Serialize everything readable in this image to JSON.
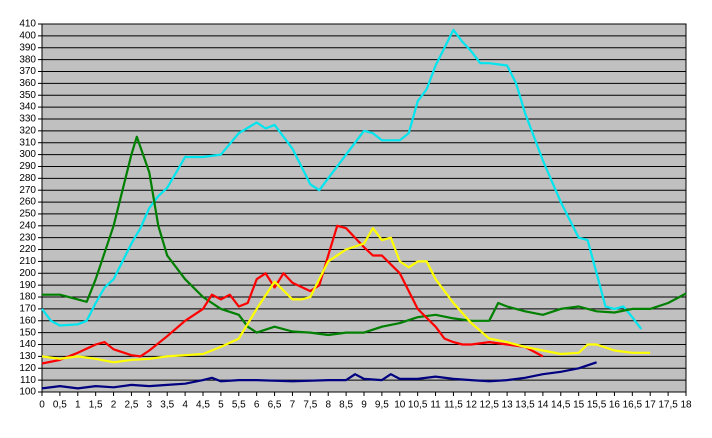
{
  "chart_data": {
    "type": "line",
    "xlim": [
      0,
      18
    ],
    "xticks": [
      0,
      {
        "value": 0.5,
        "label": "0,5"
      },
      1,
      {
        "value": 1.5,
        "label": "1,5"
      },
      2,
      {
        "value": 2.5,
        "label": "2,5"
      },
      3,
      {
        "value": 3.5,
        "label": "3,5"
      },
      4,
      {
        "value": 4.5,
        "label": "4,5"
      },
      5,
      {
        "value": 5.5,
        "label": "5,5"
      },
      6,
      {
        "value": 6.5,
        "label": "6,5"
      },
      7,
      {
        "value": 7.5,
        "label": "7,5"
      },
      8,
      {
        "value": 8.5,
        "label": "8,5"
      },
      9,
      {
        "value": 9.5,
        "label": "9,5"
      },
      10,
      {
        "value": 10.5,
        "label": "10,5"
      },
      11,
      {
        "value": 11.5,
        "label": "11,5"
      },
      12,
      {
        "value": 12.5,
        "label": "12,5"
      },
      13,
      {
        "value": 13.5,
        "label": "13,5"
      },
      14,
      {
        "value": 14.5,
        "label": "14,5"
      },
      15,
      {
        "value": 15.5,
        "label": "15,5"
      },
      16,
      {
        "value": 16.5,
        "label": "16,5"
      },
      17,
      {
        "value": 17.5,
        "label": "17,5"
      },
      18
    ],
    "ylim": [
      100,
      410
    ],
    "yticks": [
      100,
      110,
      120,
      130,
      140,
      150,
      160,
      170,
      180,
      190,
      200,
      210,
      220,
      230,
      240,
      250,
      260,
      270,
      280,
      290,
      300,
      310,
      320,
      330,
      340,
      350,
      360,
      370,
      380,
      390,
      400,
      410
    ],
    "grid": true,
    "series": [
      {
        "color": "#00e5ee",
        "x": [
          0,
          0.25,
          0.5,
          1,
          1.25,
          1.5,
          1.75,
          2,
          2.25,
          2.5,
          2.75,
          3,
          3.25,
          3.5,
          3.75,
          4,
          4.5,
          5,
          5.5,
          6,
          6.25,
          6.5,
          7,
          7.5,
          7.75,
          8,
          8.5,
          9,
          9.25,
          9.5,
          10,
          10.25,
          10.5,
          10.75,
          11,
          11.25,
          11.5,
          11.75,
          12,
          12.25,
          12.5,
          13,
          13.25,
          13.5,
          14,
          14.5,
          15,
          15.25,
          15.5,
          15.75,
          16,
          16.25,
          16.5,
          16.75
        ],
        "values": [
          170,
          160,
          156,
          157,
          160,
          175,
          188,
          195,
          210,
          225,
          238,
          255,
          265,
          272,
          285,
          298,
          298,
          300,
          318,
          327,
          322,
          325,
          305,
          275,
          270,
          280,
          300,
          320,
          318,
          312,
          312,
          318,
          345,
          355,
          375,
          390,
          405,
          395,
          387,
          377,
          377,
          375,
          360,
          335,
          295,
          260,
          230,
          228,
          200,
          172,
          170,
          172,
          163,
          153
        ]
      },
      {
        "color": "#008000",
        "x": [
          0,
          0.5,
          1,
          1.25,
          1.5,
          2,
          2.5,
          2.65,
          3,
          3.25,
          3.5,
          4,
          4.5,
          5,
          5.5,
          5.75,
          6,
          6.5,
          7,
          7.5,
          8,
          8.5,
          9,
          9.5,
          10,
          10.5,
          11,
          11.5,
          12,
          12.5,
          12.75,
          13,
          13.5,
          14,
          14.5,
          15,
          15.5,
          16,
          16.5,
          17,
          17.5,
          18
        ],
        "values": [
          182,
          182,
          178,
          176,
          195,
          240,
          300,
          315,
          285,
          240,
          215,
          195,
          180,
          170,
          165,
          155,
          150,
          155,
          151,
          150,
          148,
          150,
          150,
          155,
          158,
          163,
          165,
          162,
          160,
          160,
          175,
          172,
          168,
          165,
          170,
          172,
          168,
          167,
          170,
          170,
          175,
          183
        ]
      },
      {
        "color": "#ff0000",
        "x": [
          0,
          0.5,
          1,
          1.5,
          1.75,
          2,
          2.5,
          2.75,
          3,
          3.5,
          4,
          4.5,
          4.75,
          5,
          5.25,
          5.5,
          5.75,
          6,
          6.25,
          6.5,
          6.75,
          7,
          7.5,
          7.75,
          8,
          8.25,
          8.5,
          9,
          9.25,
          9.5,
          10,
          10.5,
          11,
          11.25,
          11.5,
          11.75,
          12,
          12.5,
          13,
          13.5,
          14
        ],
        "values": [
          124,
          127,
          133,
          140,
          142,
          136,
          131,
          130,
          135,
          147,
          160,
          170,
          182,
          178,
          182,
          172,
          175,
          195,
          200,
          188,
          200,
          192,
          185,
          190,
          215,
          240,
          238,
          222,
          215,
          215,
          200,
          170,
          155,
          145,
          142,
          140,
          140,
          142,
          140,
          138,
          130
        ]
      },
      {
        "color": "#ffff00",
        "x": [
          0,
          0.5,
          1,
          1.5,
          2,
          2.5,
          3,
          3.5,
          4,
          4.5,
          5,
          5.5,
          6,
          6.5,
          7,
          7.25,
          7.5,
          8,
          8.5,
          9,
          9.25,
          9.5,
          9.75,
          10,
          10.25,
          10.5,
          10.75,
          11,
          11.5,
          12,
          12.5,
          13,
          13.5,
          14,
          14.5,
          15,
          15.25,
          15.5,
          16,
          16.5,
          17
        ],
        "values": [
          130,
          128,
          130,
          128,
          125,
          127,
          128,
          130,
          131,
          132,
          138,
          145,
          170,
          193,
          178,
          178,
          180,
          210,
          220,
          225,
          238,
          228,
          230,
          210,
          205,
          210,
          210,
          195,
          175,
          158,
          145,
          142,
          138,
          135,
          132,
          133,
          140,
          140,
          135,
          133,
          133
        ]
      },
      {
        "color": "#000080",
        "x": [
          0,
          0.5,
          1,
          1.5,
          2,
          2.5,
          3,
          3.5,
          4,
          4.5,
          4.75,
          5,
          5.5,
          6,
          7,
          8,
          8.5,
          8.75,
          9,
          9.5,
          9.75,
          10,
          10.5,
          11,
          11.5,
          12,
          12.5,
          13,
          13.5,
          14,
          14.5,
          15,
          15.5
        ],
        "values": [
          103,
          105,
          103,
          105,
          104,
          106,
          105,
          106,
          107,
          110,
          112,
          109,
          110,
          110,
          109,
          110,
          110,
          115,
          111,
          110,
          115,
          111,
          111,
          113,
          111,
          110,
          109,
          110,
          112,
          115,
          117,
          120,
          125
        ]
      }
    ]
  }
}
